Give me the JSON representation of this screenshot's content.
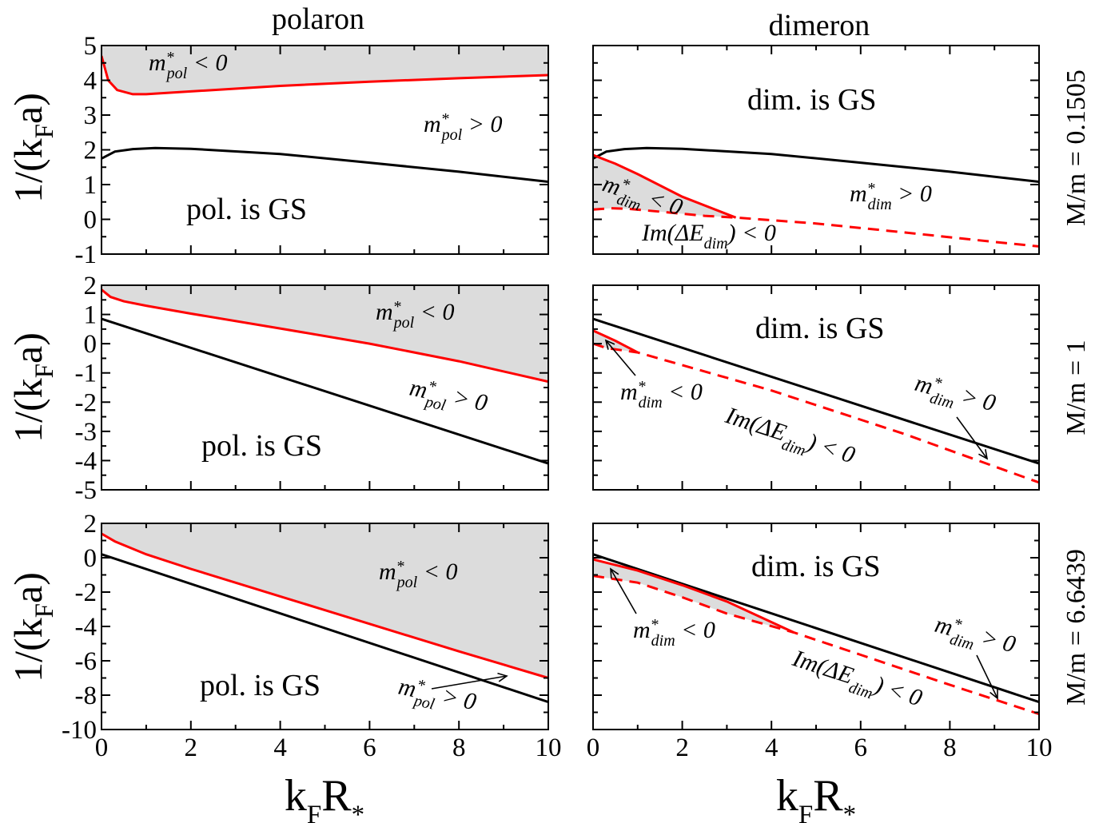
{
  "chart_data": {
    "type": "line",
    "column_titles": [
      "polaron",
      "dimeron"
    ],
    "xlabel_main": "k",
    "xlabel_sub1": "F",
    "xlabel_main2": "R",
    "xlabel_sub2": "*",
    "ylabel_pre": "1/(k",
    "ylabel_sub": "F",
    "ylabel_post": "a)",
    "xticks": [
      "0",
      "2",
      "4",
      "6",
      "8",
      "10"
    ],
    "xlim": [
      0,
      10
    ],
    "ann": {
      "m_sym": "m",
      "star": "*",
      "pol": "pol",
      "dim": "dim",
      "lt0": " < 0",
      "gt0": " > 0",
      "pol_gs": "pol. is GS",
      "dim_gs": "dim. is GS",
      "im_pre": "Im(ΔE",
      "im_post": ") < 0"
    },
    "rows": [
      {
        "mass_label": "M/m = 0.1505",
        "ylim": [
          -1,
          5
        ],
        "yticks": [
          "5",
          "4",
          "3",
          "2",
          "1",
          "0",
          "-1"
        ],
        "polaron": {
          "neg_mass_boundary": [
            [
              0,
              4.7
            ],
            [
              0.15,
              4.0
            ],
            [
              0.35,
              3.72
            ],
            [
              0.7,
              3.6
            ],
            [
              1,
              3.6
            ],
            [
              2,
              3.68
            ],
            [
              4,
              3.84
            ],
            [
              6,
              3.96
            ],
            [
              8,
              4.06
            ],
            [
              10,
              4.15
            ]
          ],
          "ground_state_boundary": [
            [
              0,
              1.75
            ],
            [
              0.3,
              1.95
            ],
            [
              0.7,
              2.02
            ],
            [
              1.2,
              2.05
            ],
            [
              2,
              2.03
            ],
            [
              4,
              1.88
            ],
            [
              6,
              1.63
            ],
            [
              8,
              1.37
            ],
            [
              10,
              1.08
            ]
          ]
        },
        "dimeron": {
          "ground_state_boundary": [
            [
              0,
              1.75
            ],
            [
              0.3,
              1.95
            ],
            [
              0.7,
              2.02
            ],
            [
              1.2,
              2.05
            ],
            [
              2,
              2.03
            ],
            [
              4,
              1.88
            ],
            [
              6,
              1.63
            ],
            [
              8,
              1.37
            ],
            [
              10,
              1.08
            ]
          ],
          "neg_mass_boundary": [
            [
              0,
              1.85
            ],
            [
              0.5,
              1.6
            ],
            [
              1,
              1.3
            ],
            [
              2,
              0.65
            ],
            [
              3.2,
              0.05
            ]
          ],
          "instability_boundary": [
            [
              0,
              0.28
            ],
            [
              0.4,
              0.32
            ],
            [
              0.8,
              0.3
            ],
            [
              1.5,
              0.22
            ],
            [
              2.5,
              0.1
            ],
            [
              3.2,
              0.05
            ],
            [
              5,
              -0.12
            ],
            [
              7,
              -0.38
            ],
            [
              9,
              -0.65
            ],
            [
              10,
              -0.78
            ]
          ]
        }
      },
      {
        "mass_label": "M/m = 1",
        "ylim": [
          -5,
          2
        ],
        "yticks": [
          "2",
          "1",
          "0",
          "-1",
          "-2",
          "-3",
          "-4",
          "-5"
        ],
        "polaron": {
          "neg_mass_boundary": [
            [
              0,
              1.85
            ],
            [
              0.2,
              1.6
            ],
            [
              0.5,
              1.45
            ],
            [
              1,
              1.3
            ],
            [
              2,
              1.03
            ],
            [
              4,
              0.52
            ],
            [
              6,
              0.0
            ],
            [
              8,
              -0.6
            ],
            [
              10,
              -1.3
            ]
          ],
          "ground_state_boundary": [
            [
              0,
              0.85
            ],
            [
              10,
              -4.1
            ]
          ]
        },
        "dimeron": {
          "ground_state_boundary": [
            [
              0,
              0.85
            ],
            [
              10,
              -4.1
            ]
          ],
          "neg_mass_boundary": [
            [
              0,
              0.45
            ],
            [
              0.5,
              0.1
            ],
            [
              1,
              -0.3
            ]
          ],
          "instability_boundary": [
            [
              0,
              0.0
            ],
            [
              0.3,
              -0.15
            ],
            [
              1,
              -0.3
            ],
            [
              4,
              -1.6
            ],
            [
              7,
              -3.1
            ],
            [
              10,
              -4.75
            ]
          ]
        }
      },
      {
        "mass_label": "M/m = 6.6439",
        "ylim": [
          -10,
          2
        ],
        "yticks": [
          "2",
          "0",
          "-2",
          "-4",
          "-6",
          "-8",
          "-10"
        ],
        "polaron": {
          "neg_mass_boundary": [
            [
              0,
              1.4
            ],
            [
              0.3,
              0.95
            ],
            [
              1,
              0.2
            ],
            [
              2,
              -0.65
            ],
            [
              4,
              -2.25
            ],
            [
              6,
              -3.85
            ],
            [
              8,
              -5.45
            ],
            [
              10,
              -7.0
            ]
          ],
          "ground_state_boundary": [
            [
              0,
              0.2
            ],
            [
              10,
              -8.4
            ]
          ]
        },
        "dimeron": {
          "ground_state_boundary": [
            [
              0,
              0.2
            ],
            [
              10,
              -8.4
            ]
          ],
          "neg_mass_boundary": [
            [
              0,
              -0.1
            ],
            [
              1,
              -0.75
            ],
            [
              2,
              -1.6
            ],
            [
              3,
              -2.55
            ],
            [
              4.5,
              -4.35
            ]
          ],
          "instability_boundary": [
            [
              0,
              -1.05
            ],
            [
              1,
              -1.45
            ],
            [
              2,
              -2.3
            ],
            [
              3,
              -3.25
            ],
            [
              4.5,
              -4.35
            ],
            [
              6,
              -5.65
            ],
            [
              8,
              -7.4
            ],
            [
              10,
              -9.1
            ]
          ]
        }
      }
    ],
    "colors": {
      "neg_mass": "#ff0000",
      "ground_state": "#000000",
      "shade": "#dcdcdc"
    },
    "grid": false
  }
}
